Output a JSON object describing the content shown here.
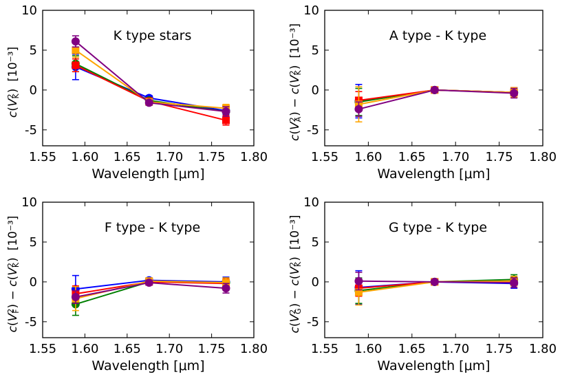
{
  "chart_data": [
    {
      "type": "line",
      "title": "K type stars",
      "xlabel": "Wavelength [μm]",
      "ylabel": "c(V²_K)",
      "yunit": "[10⁻³]",
      "xlim": [
        1.55,
        1.8
      ],
      "ylim": [
        -7,
        10
      ],
      "xticks": [
        "1.55",
        "1.60",
        "1.65",
        "1.70",
        "1.75",
        "1.80"
      ],
      "yticks": [
        "10",
        "5",
        "0",
        "-5"
      ],
      "x": [
        1.589,
        1.676,
        1.767
      ],
      "series": [
        {
          "name": "blue",
          "color": "#0000ff",
          "values": [
            2.9,
            -1.0,
            -2.6
          ],
          "errors": [
            1.6,
            0.3,
            0.5
          ]
        },
        {
          "name": "green",
          "color": "#007f00",
          "values": [
            3.3,
            -1.3,
            -2.7
          ],
          "errors": [
            1.0,
            0.3,
            0.6
          ]
        },
        {
          "name": "red",
          "color": "#ff0000",
          "values": [
            3.1,
            -1.4,
            -3.8
          ],
          "errors": [
            0.8,
            0.3,
            0.6
          ]
        },
        {
          "name": "orange",
          "color": "#ffa500",
          "values": [
            5.0,
            -1.5,
            -2.3
          ],
          "errors": [
            0.9,
            0.3,
            0.5
          ]
        },
        {
          "name": "purple",
          "color": "#800080",
          "values": [
            6.1,
            -1.6,
            -2.7
          ],
          "errors": [
            0.7,
            0.3,
            0.6
          ]
        }
      ]
    },
    {
      "type": "line",
      "title": "A type - K type",
      "xlabel": "Wavelength [μm]",
      "ylabel": "c(V²_A) − c(V²_K)",
      "yunit": "[10⁻³]",
      "xlim": [
        1.55,
        1.8
      ],
      "ylim": [
        -7,
        10
      ],
      "xticks": [
        "1.55",
        "1.60",
        "1.65",
        "1.70",
        "1.75",
        "1.80"
      ],
      "yticks": [
        "10",
        "5",
        "0",
        "-5"
      ],
      "x": [
        1.589,
        1.676,
        1.767
      ],
      "series": [
        {
          "name": "blue",
          "color": "#0000ff",
          "values": [
            -1.4,
            0.0,
            -0.3
          ],
          "errors": [
            2.1,
            0.3,
            0.6
          ]
        },
        {
          "name": "green",
          "color": "#007f00",
          "values": [
            -1.5,
            0.0,
            -0.3
          ],
          "errors": [
            1.7,
            0.3,
            0.6
          ]
        },
        {
          "name": "red",
          "color": "#ff0000",
          "values": [
            -1.3,
            0.0,
            -0.3
          ],
          "errors": [
            1.1,
            0.3,
            0.6
          ]
        },
        {
          "name": "orange",
          "color": "#ffa500",
          "values": [
            -1.8,
            0.0,
            -0.3
          ],
          "errors": [
            2.2,
            0.3,
            0.6
          ]
        },
        {
          "name": "purple",
          "color": "#800080",
          "values": [
            -2.4,
            0.0,
            -0.4
          ],
          "errors": [
            0.9,
            0.3,
            0.6
          ]
        }
      ]
    },
    {
      "type": "line",
      "title": "F type - K type",
      "xlabel": "Wavelength [μm]",
      "ylabel": "c(V²_F) − c(V²_K)",
      "yunit": "[10⁻³]",
      "xlim": [
        1.55,
        1.8
      ],
      "ylim": [
        -7,
        10
      ],
      "xticks": [
        "1.55",
        "1.60",
        "1.65",
        "1.70",
        "1.75",
        "1.80"
      ],
      "yticks": [
        "10",
        "5",
        "0",
        "-5"
      ],
      "x": [
        1.589,
        1.676,
        1.767
      ],
      "series": [
        {
          "name": "blue",
          "color": "#0000ff",
          "values": [
            -0.9,
            0.2,
            0.0
          ],
          "errors": [
            1.7,
            0.3,
            0.6
          ]
        },
        {
          "name": "green",
          "color": "#007f00",
          "values": [
            -2.8,
            0.0,
            -0.1
          ],
          "errors": [
            1.4,
            0.3,
            0.6
          ]
        },
        {
          "name": "red",
          "color": "#ff0000",
          "values": [
            -1.5,
            0.0,
            -0.2
          ],
          "errors": [
            1.0,
            0.3,
            0.6
          ]
        },
        {
          "name": "orange",
          "color": "#ffa500",
          "values": [
            -2.1,
            0.1,
            -0.1
          ],
          "errors": [
            1.5,
            0.3,
            0.6
          ]
        },
        {
          "name": "purple",
          "color": "#800080",
          "values": [
            -1.9,
            -0.1,
            -0.8
          ],
          "errors": [
            0.8,
            0.3,
            0.6
          ]
        }
      ]
    },
    {
      "type": "line",
      "title": "G type - K type",
      "xlabel": "Wavelength [μm]",
      "ylabel": "c(V²_G) − c(V²_K)",
      "yunit": "[10⁻³]",
      "xlim": [
        1.55,
        1.8
      ],
      "ylim": [
        -7,
        10
      ],
      "xticks": [
        "1.55",
        "1.60",
        "1.65",
        "1.70",
        "1.75",
        "1.80"
      ],
      "yticks": [
        "10",
        "5",
        "0",
        "-5"
      ],
      "x": [
        1.589,
        1.676,
        1.767
      ],
      "series": [
        {
          "name": "blue",
          "color": "#0000ff",
          "values": [
            -0.7,
            0.0,
            -0.2
          ],
          "errors": [
            2.1,
            0.3,
            0.6
          ]
        },
        {
          "name": "green",
          "color": "#007f00",
          "values": [
            -1.1,
            0.0,
            0.3
          ],
          "errors": [
            1.6,
            0.3,
            0.6
          ]
        },
        {
          "name": "red",
          "color": "#ff0000",
          "values": [
            -0.8,
            0.0,
            0.1
          ],
          "errors": [
            1.0,
            0.3,
            0.6
          ]
        },
        {
          "name": "orange",
          "color": "#ffa500",
          "values": [
            -1.3,
            0.0,
            0.1
          ],
          "errors": [
            1.6,
            0.3,
            0.6
          ]
        },
        {
          "name": "purple",
          "color": "#800080",
          "values": [
            0.1,
            0.0,
            -0.1
          ],
          "errors": [
            1.1,
            0.3,
            0.6
          ]
        }
      ]
    }
  ]
}
